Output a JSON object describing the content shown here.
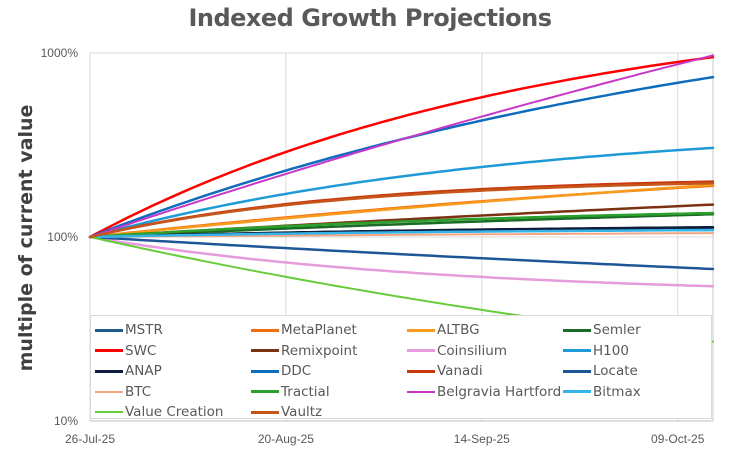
{
  "chart_data": {
    "type": "line",
    "title": "Indexed Growth Projections",
    "xlabel": "",
    "ylabel": "multiple of current value",
    "y_scale": "log",
    "ylim": [
      10,
      1000
    ],
    "y_ticks": [
      {
        "value": 10,
        "label": "10%"
      },
      {
        "value": 100,
        "label": "100%"
      },
      {
        "value": 1000,
        "label": "1000%"
      }
    ],
    "x_start_date": "2025-07-26",
    "x_end_day": 79.5,
    "x_ticks": [
      {
        "day": 0,
        "label": "26-Jul-25"
      },
      {
        "day": 25,
        "label": "20-Aug-25"
      },
      {
        "day": 50,
        "label": "14-Sep-25"
      },
      {
        "day": 75,
        "label": "09-Oct-25"
      }
    ],
    "grid": {
      "vertical": true,
      "horizontal": true
    },
    "legend_position": "bottom-inside",
    "series": [
      {
        "name": "MSTR",
        "color": "#1F5C8B",
        "start": 100,
        "end": 112,
        "curvature": 1.0,
        "width": 2.5
      },
      {
        "name": "MetaPlanet",
        "color": "#F26B0F",
        "start": 100,
        "end": 190,
        "curvature": 0.6,
        "width": 2.5
      },
      {
        "name": "ALTBG",
        "color": "#F79A1E",
        "start": 100,
        "end": 192,
        "curvature": 0.4,
        "width": 2.5
      },
      {
        "name": "Semler",
        "color": "#1A6B25",
        "start": 100,
        "end": 133,
        "curvature": 0.5,
        "width": 2.5
      },
      {
        "name": "SWC",
        "color": "#FF0000",
        "start": 100,
        "end": 950,
        "curvature": 1.4,
        "width": 2.5
      },
      {
        "name": "Remixpoint",
        "color": "#7B3112",
        "start": 100,
        "end": 150,
        "curvature": 0.3,
        "width": 2.5
      },
      {
        "name": "Coinsilium",
        "color": "#E59BDC",
        "start": 100,
        "end": 54,
        "curvature": 1.8,
        "width": 2.5
      },
      {
        "name": "H100",
        "color": "#1E9BD7",
        "start": 100,
        "end": 305,
        "curvature": 1.5,
        "width": 2.5
      },
      {
        "name": "ANAP",
        "color": "#0F1E3C",
        "start": 100,
        "end": 113,
        "curvature": 1.2,
        "width": 2.5
      },
      {
        "name": "DDC",
        "color": "#0F6CBD",
        "start": 100,
        "end": 740,
        "curvature": 0.9,
        "width": 2.5
      },
      {
        "name": "Vanadi",
        "color": "#C8380C",
        "start": 100,
        "end": 200,
        "curvature": 2.5,
        "width": 2.5
      },
      {
        "name": "Locate",
        "color": "#1E5597",
        "start": 100,
        "end": 67,
        "curvature": 0.3,
        "width": 2.5
      },
      {
        "name": "BTC",
        "color": "#F4A582",
        "start": 100,
        "end": 105,
        "curvature": 0.5,
        "width": 2
      },
      {
        "name": "Tractial",
        "color": "#2CA02C",
        "start": 100,
        "end": 135,
        "curvature": 1.2,
        "width": 2.5
      },
      {
        "name": "Belgravia Hartford",
        "color": "#C837C8",
        "start": 100,
        "end": 970,
        "curvature": 0.3,
        "width": 2
      },
      {
        "name": "Bitmax",
        "color": "#35B4EA",
        "start": 100,
        "end": 109,
        "curvature": 1.5,
        "width": 2.5
      },
      {
        "name": "Value Creation",
        "color": "#67CC3A",
        "start": 100,
        "end": 27,
        "curvature": 0.6,
        "width": 2
      },
      {
        "name": "Vaultz",
        "color": "#C5551A",
        "start": 100,
        "end": 196,
        "curvature": 2.5,
        "width": 2.5
      }
    ]
  }
}
